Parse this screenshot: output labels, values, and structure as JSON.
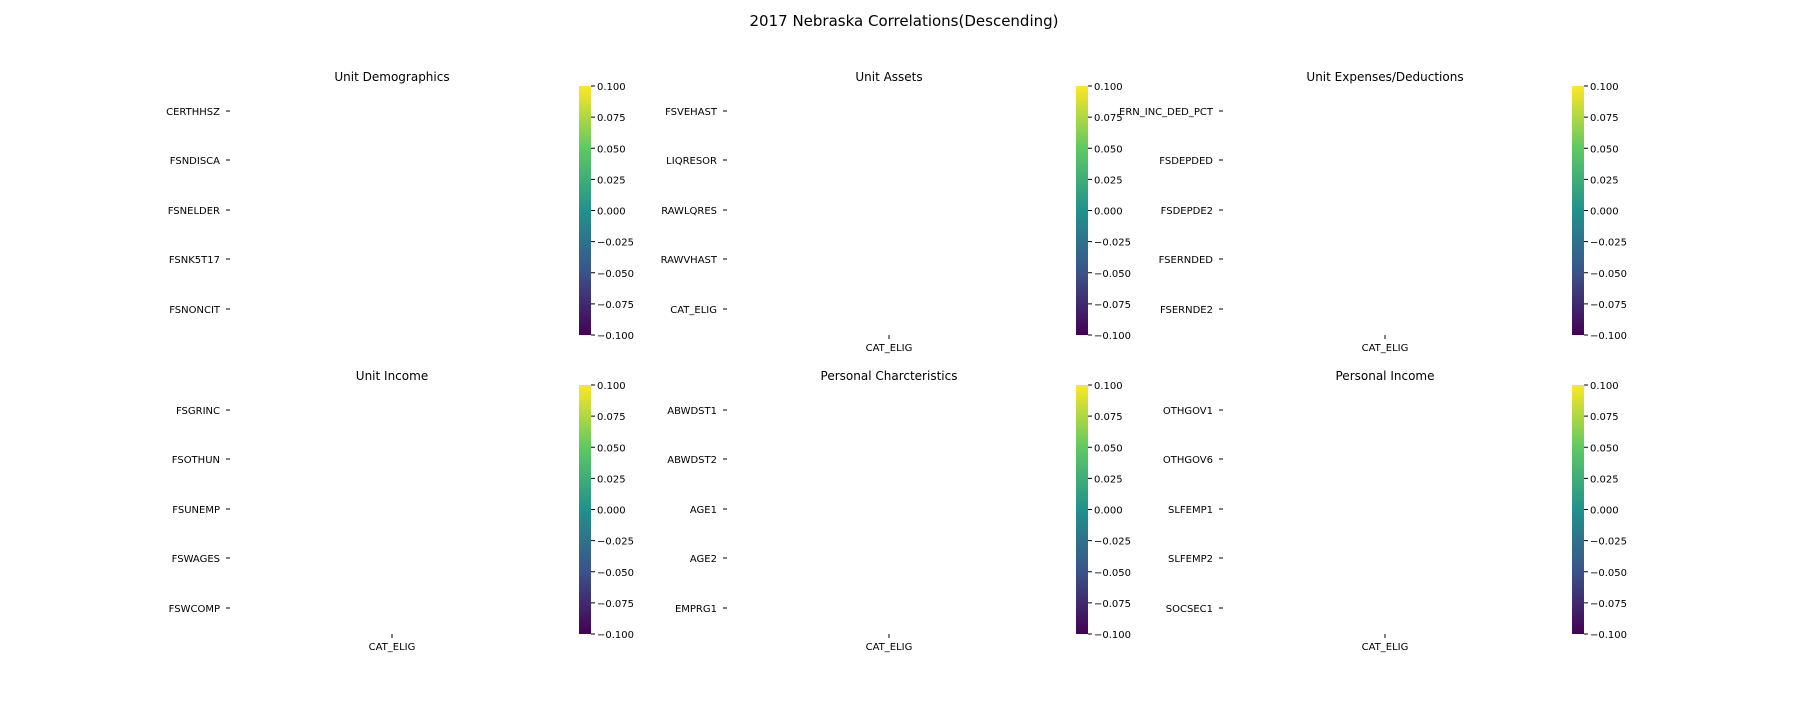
{
  "figure_title": "2017 Nebraska Correlations(Descending)",
  "colorbar": {
    "colormap": "viridis",
    "colors": [
      "#440154",
      "#3b528b",
      "#21918c",
      "#5ec962",
      "#fde725"
    ],
    "tick_labels": [
      "0.100",
      "0.075",
      "0.050",
      "0.025",
      "0.000",
      "−0.025",
      "−0.050",
      "−0.075",
      "−0.100"
    ],
    "vmin": -0.1,
    "vmax": 0.1
  },
  "chart_data": [
    {
      "type": "heatmap",
      "title": "Unit Demographics",
      "x_tick_labels": [],
      "y_tick_labels": [
        "CERTHHSZ",
        "FSNDISCA",
        "FSNELDER",
        "FSNK5T17",
        "FSNONCIT"
      ],
      "values": [],
      "vlim": [
        -0.1,
        0.1
      ]
    },
    {
      "type": "heatmap",
      "title": "Unit Assets",
      "x_tick_labels": [
        "CAT_ELIG"
      ],
      "y_tick_labels": [
        "FSVEHAST",
        "LIQRESOR",
        "RAWLQRES",
        "RAWVHAST",
        "CAT_ELIG"
      ],
      "values": [],
      "vlim": [
        -0.1,
        0.1
      ]
    },
    {
      "type": "heatmap",
      "title": "Unit Expenses/Deductions",
      "x_tick_labels": [
        "CAT_ELIG"
      ],
      "y_tick_labels": [
        "ERN_INC_DED_PCT",
        "FSDEPDED",
        "FSDEPDE2",
        "FSERNDED",
        "FSERNDE2"
      ],
      "values": [],
      "vlim": [
        -0.1,
        0.1
      ]
    },
    {
      "type": "heatmap",
      "title": "Unit Income",
      "x_tick_labels": [
        "CAT_ELIG"
      ],
      "y_tick_labels": [
        "FSGRINC",
        "FSOTHUN",
        "FSUNEMP",
        "FSWAGES",
        "FSWCOMP"
      ],
      "values": [],
      "vlim": [
        -0.1,
        0.1
      ]
    },
    {
      "type": "heatmap",
      "title": "Personal Charcteristics",
      "x_tick_labels": [
        "CAT_ELIG"
      ],
      "y_tick_labels": [
        "ABWDST1",
        "ABWDST2",
        "AGE1",
        "AGE2",
        "EMPRG1"
      ],
      "values": [],
      "vlim": [
        -0.1,
        0.1
      ]
    },
    {
      "type": "heatmap",
      "title": "Personal Income",
      "x_tick_labels": [
        "CAT_ELIG"
      ],
      "y_tick_labels": [
        "OTHGOV1",
        "OTHGOV6",
        "SLFEMP1",
        "SLFEMP2",
        "SOCSEC1"
      ],
      "values": [],
      "vlim": [
        -0.1,
        0.1
      ]
    }
  ]
}
